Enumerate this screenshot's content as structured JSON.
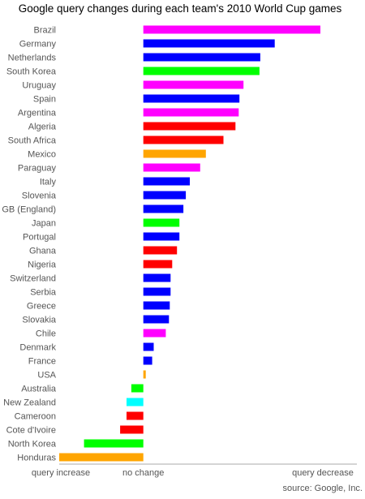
{
  "chart_data": {
    "type": "bar",
    "orientation": "horizontal",
    "title": "Google query changes during each team's 2010 World Cup games",
    "source": "source: Google, Inc.",
    "x_tick_labels": [
      "query increase",
      "no change",
      "query decrease"
    ],
    "grid": false,
    "legend": "none",
    "categories": [
      "Brazil",
      "Germany",
      "Netherlands",
      "South Korea",
      "Uruguay",
      "Spain",
      "Argentina",
      "Algeria",
      "South Africa",
      "Mexico",
      "Paraguay",
      "Italy",
      "Slovenia",
      "GB (England)",
      "Japan",
      "Portugal",
      "Ghana",
      "Nigeria",
      "Switzerland",
      "Serbia",
      "Greece",
      "Slovakia",
      "Chile",
      "Denmark",
      "France",
      "USA",
      "Australia",
      "New Zealand",
      "Cameroon",
      "Cote d'Ivoire",
      "North Korea",
      "Honduras"
    ],
    "values": [
      221,
      164,
      146,
      145,
      125,
      120,
      119,
      115,
      100,
      78,
      71,
      58,
      53,
      50,
      45,
      45,
      42,
      36,
      34,
      34,
      33,
      32,
      28,
      13,
      11,
      3,
      -15,
      -21,
      -21,
      -29,
      -74,
      -105
    ],
    "colors": [
      "#ff00ff",
      "#0000ff",
      "#0000ff",
      "#00ff00",
      "#ff00ff",
      "#0000ff",
      "#ff00ff",
      "#ff0000",
      "#ff0000",
      "#ffa500",
      "#ff00ff",
      "#0000ff",
      "#0000ff",
      "#0000ff",
      "#00ff00",
      "#0000ff",
      "#ff0000",
      "#ff0000",
      "#0000ff",
      "#0000ff",
      "#0000ff",
      "#0000ff",
      "#ff00ff",
      "#0000ff",
      "#0000ff",
      "#ffa500",
      "#00ff00",
      "#00ffff",
      "#ff0000",
      "#ff0000",
      "#00ff00",
      "#ffa500"
    ],
    "xlim": [
      -105,
      225
    ]
  }
}
